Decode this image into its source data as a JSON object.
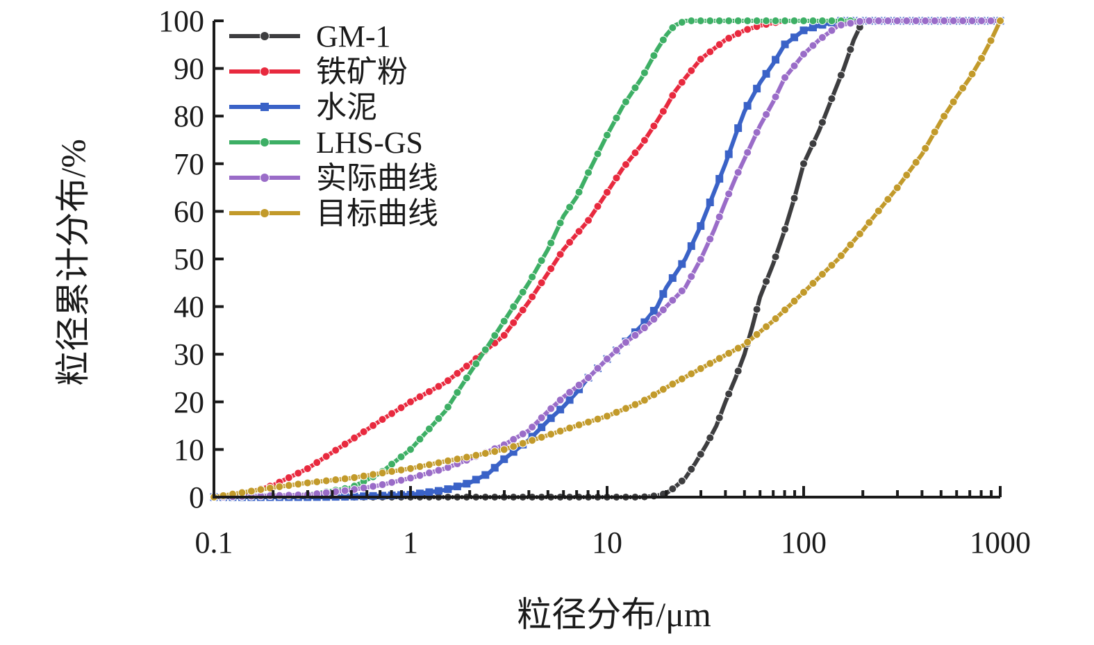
{
  "chart_data": {
    "type": "line",
    "title": "",
    "xlabel": "粒径分布/μm",
    "ylabel": "粒径累计分布/%",
    "x_scale": "log",
    "xlim": [
      0.1,
      1000
    ],
    "ylim": [
      0,
      100
    ],
    "x_ticks": [
      "0.1",
      "1",
      "10",
      "100",
      "1000"
    ],
    "y_ticks": [
      "0",
      "10",
      "20",
      "30",
      "40",
      "50",
      "60",
      "70",
      "80",
      "90",
      "100"
    ],
    "grid": false,
    "legend_position": "top-left",
    "series": [
      {
        "name": "GM-1",
        "color": "#3d3d3f",
        "marker": "circle",
        "x": [
          0.1,
          1,
          2,
          5,
          10,
          15,
          18,
          20,
          22,
          25,
          28,
          32,
          36,
          40,
          45,
          50,
          55,
          60,
          70,
          80,
          90,
          100,
          120,
          140,
          160,
          180,
          200,
          300,
          500,
          1000
        ],
        "y": [
          0,
          0,
          0,
          0,
          0,
          0,
          0.3,
          0.8,
          2,
          4,
          7,
          11,
          15,
          20,
          25,
          30,
          36,
          42,
          49,
          56,
          63,
          70,
          77,
          84,
          90,
          96,
          100,
          100,
          100,
          100
        ]
      },
      {
        "name": "铁矿粉",
        "color": "#e8293e",
        "marker": "circle",
        "x": [
          0.1,
          0.15,
          0.2,
          0.3,
          0.5,
          0.7,
          1,
          1.5,
          2,
          3,
          4,
          5,
          6,
          8,
          10,
          12,
          15,
          18,
          20,
          22,
          25,
          30,
          40,
          50,
          60,
          80,
          100,
          150,
          200,
          1000
        ],
        "y": [
          0,
          1,
          2.5,
          6,
          12,
          16,
          20,
          24,
          28,
          34,
          41,
          47,
          52,
          58,
          64,
          69,
          74,
          79,
          82,
          85,
          88,
          92,
          96,
          98,
          99,
          100,
          100,
          100,
          100,
          100
        ]
      },
      {
        "name": "水泥",
        "color": "#3a62c7",
        "marker": "square",
        "x": [
          0.1,
          0.3,
          0.5,
          1,
          1.5,
          2,
          2.5,
          3,
          4,
          5,
          6,
          7,
          8,
          10,
          12,
          15,
          18,
          20,
          25,
          30,
          35,
          40,
          45,
          50,
          60,
          70,
          80,
          100,
          120,
          150,
          200,
          1000
        ],
        "y": [
          0,
          0,
          0.1,
          0.5,
          1.5,
          3,
          5,
          8,
          12,
          16,
          19,
          22,
          25,
          29,
          32,
          36,
          40,
          44,
          50,
          57,
          64,
          70,
          76,
          81,
          87,
          91,
          95,
          98,
          99,
          100,
          100,
          100
        ]
      },
      {
        "name": "LHS-GS",
        "color": "#3daf65",
        "marker": "circle",
        "x": [
          0.1,
          0.3,
          0.5,
          0.7,
          1,
          1.5,
          2,
          2.5,
          3,
          4,
          5,
          6,
          7,
          8,
          10,
          12,
          15,
          18,
          20,
          22,
          25,
          30,
          50,
          100,
          1000
        ],
        "y": [
          0,
          0.5,
          2,
          5,
          10,
          18,
          26,
          32,
          37,
          45,
          52,
          59,
          63,
          68,
          76,
          82,
          88,
          94,
          97,
          99,
          100,
          100,
          100,
          100,
          100
        ]
      },
      {
        "name": "实际曲线",
        "color": "#9a6cc8",
        "marker": "circle",
        "x": [
          0.1,
          0.3,
          0.5,
          0.7,
          1,
          1.5,
          2,
          3,
          4,
          5,
          6,
          8,
          10,
          12,
          15,
          18,
          20,
          25,
          30,
          35,
          40,
          45,
          50,
          60,
          70,
          80,
          100,
          120,
          150,
          200,
          1000
        ],
        "y": [
          0,
          0.5,
          1.5,
          2.5,
          4,
          6,
          8,
          11,
          14,
          18,
          21,
          25,
          29,
          32,
          35,
          38,
          40,
          44,
          50,
          56,
          62,
          67,
          71,
          78,
          83,
          88,
          93,
          96,
          99,
          100,
          100
        ]
      },
      {
        "name": "目标曲线",
        "color": "#c29a2a",
        "marker": "circle",
        "x": [
          0.1,
          0.2,
          0.3,
          0.5,
          0.7,
          1,
          1.5,
          2,
          3,
          5,
          7,
          10,
          15,
          20,
          30,
          50,
          70,
          100,
          150,
          200,
          300,
          400,
          500,
          600,
          700,
          800,
          900,
          1000
        ],
        "y": [
          0,
          2,
          3,
          4,
          5,
          6,
          7.5,
          8.5,
          10,
          13,
          15,
          17,
          20,
          23,
          27,
          32,
          37,
          43,
          50,
          56,
          65,
          72,
          79,
          84,
          88,
          92,
          96,
          100
        ]
      }
    ]
  }
}
